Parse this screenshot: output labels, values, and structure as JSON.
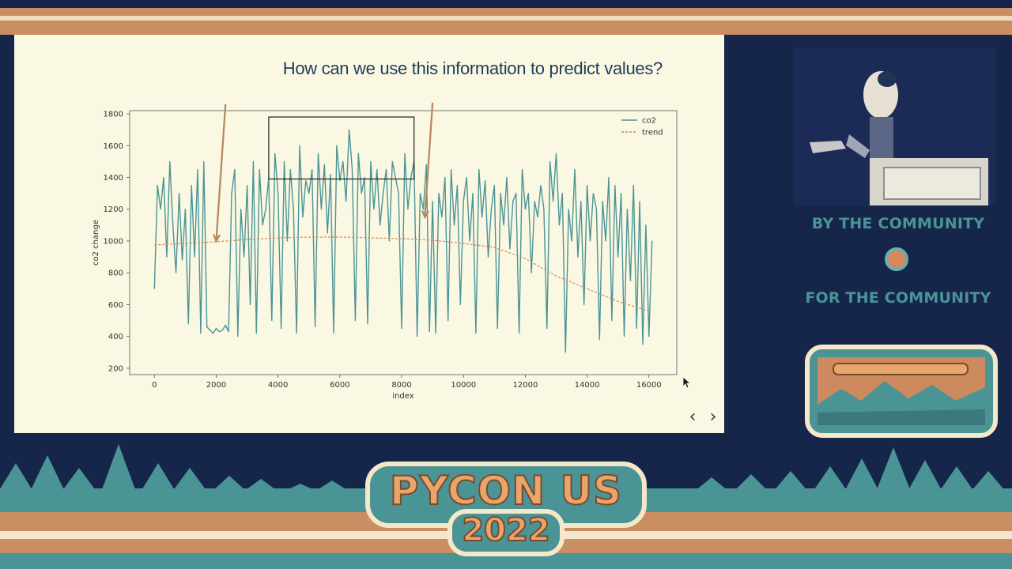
{
  "slide": {
    "title": "How can we use this information to predict values?",
    "prev_label": "‹",
    "next_label": "›"
  },
  "sidebar": {
    "tagline_top": "BY THE COMMUNITY",
    "tagline_bottom": "FOR THE COMMUNITY"
  },
  "event": {
    "name": "PYCON US",
    "year": "2022"
  },
  "icons": {
    "prev": "chevron-left-icon",
    "next": "chevron-right-icon",
    "cursor": "mouse-pointer-icon"
  },
  "colors": {
    "background": "#16254a",
    "slide_bg": "#faf8e2",
    "accent_tan": "#c98e62",
    "accent_teal": "#4b9496",
    "co2_line": "#4b9496",
    "trend_line": "#d9865a",
    "annotation": "#b5865a"
  },
  "chart_data": {
    "type": "line",
    "xlabel": "index",
    "ylabel": "co2 change",
    "xlim": [
      -800,
      16900
    ],
    "ylim": [
      160,
      1820
    ],
    "x_ticks": [
      0,
      2000,
      4000,
      6000,
      8000,
      10000,
      12000,
      14000,
      16000
    ],
    "y_ticks": [
      200,
      400,
      600,
      800,
      1000,
      1200,
      1400,
      1600,
      1800
    ],
    "legend_position": "top-right",
    "series": [
      {
        "name": "co2",
        "color": "#4b9496",
        "x": [
          0,
          100,
          200,
          300,
          400,
          500,
          600,
          700,
          800,
          900,
          1000,
          1100,
          1200,
          1300,
          1400,
          1500,
          1600,
          1700,
          1800,
          1900,
          2000,
          2100,
          2200,
          2300,
          2400,
          2500,
          2600,
          2700,
          2800,
          2900,
          3000,
          3100,
          3200,
          3300,
          3400,
          3500,
          3600,
          3700,
          3800,
          3900,
          4000,
          4100,
          4200,
          4300,
          4400,
          4500,
          4600,
          4700,
          4800,
          4900,
          5000,
          5100,
          5200,
          5300,
          5400,
          5500,
          5600,
          5700,
          5800,
          5900,
          6000,
          6100,
          6200,
          6300,
          6400,
          6500,
          6600,
          6700,
          6800,
          6900,
          7000,
          7100,
          7200,
          7300,
          7400,
          7500,
          7600,
          7700,
          7800,
          7900,
          8000,
          8100,
          8200,
          8300,
          8400,
          8500,
          8600,
          8700,
          8800,
          8900,
          9000,
          9100,
          9200,
          9300,
          9400,
          9500,
          9600,
          9700,
          9800,
          9900,
          10000,
          10100,
          10200,
          10300,
          10400,
          10500,
          10600,
          10700,
          10800,
          10900,
          11000,
          11100,
          11200,
          11300,
          11400,
          11500,
          11600,
          11700,
          11800,
          11900,
          12000,
          12100,
          12200,
          12300,
          12400,
          12500,
          12600,
          12700,
          12800,
          12900,
          13000,
          13100,
          13200,
          13300,
          13400,
          13500,
          13600,
          13700,
          13800,
          13900,
          14000,
          14100,
          14200,
          14300,
          14400,
          14500,
          14600,
          14700,
          14800,
          14900,
          15000,
          15100,
          15200,
          15300,
          15400,
          15500,
          15600,
          15700,
          15800,
          15900,
          16000,
          16100
        ],
        "y": [
          700,
          1350,
          1200,
          1400,
          900,
          1500,
          1100,
          800,
          1300,
          880,
          1200,
          480,
          1350,
          900,
          1450,
          420,
          1500,
          460,
          440,
          420,
          450,
          430,
          440,
          470,
          430,
          1300,
          1450,
          400,
          1200,
          900,
          1350,
          600,
          1500,
          420,
          1450,
          1100,
          1200,
          1400,
          500,
          1550,
          1300,
          450,
          1500,
          1000,
          1450,
          1200,
          420,
          1600,
          1150,
          1380,
          1300,
          1450,
          460,
          1550,
          1200,
          1480,
          1050,
          1420,
          420,
          1600,
          1380,
          1500,
          1250,
          1700,
          1450,
          500,
          1550,
          1300,
          1400,
          480,
          1500,
          1200,
          1450,
          1100,
          1300,
          1450,
          1000,
          1500,
          1400,
          1300,
          450,
          1550,
          1200,
          1400,
          1500,
          400,
          1300,
          1200,
          1480,
          430,
          1250,
          420,
          1300,
          1150,
          1400,
          500,
          1450,
          1100,
          1350,
          600,
          1250,
          1400,
          1000,
          1300,
          420,
          1450,
          1150,
          1380,
          900,
          1200,
          1350,
          450,
          1300,
          1100,
          1400,
          950,
          1250,
          1300,
          420,
          1450,
          1200,
          1300,
          800,
          1250,
          1150,
          1350,
          1200,
          450,
          1500,
          1250,
          1550,
          1100,
          1300,
          300,
          1200,
          1000,
          1450,
          900,
          1250,
          600,
          1350,
          1000,
          1300,
          1200,
          380,
          1250,
          1000,
          1400,
          500,
          1350,
          900,
          1300,
          400,
          1200,
          750,
          1350,
          450,
          1250,
          350,
          1100,
          400,
          1000
        ]
      },
      {
        "name": "trend",
        "color": "#d9865a",
        "x": [
          0,
          1000,
          2000,
          3000,
          4000,
          5000,
          6000,
          7000,
          8000,
          9000,
          10000,
          11000,
          12000,
          13000,
          14000,
          15000,
          16000
        ],
        "y": [
          975,
          985,
          995,
          1010,
          1020,
          1025,
          1025,
          1020,
          1015,
          1005,
          985,
          960,
          890,
          780,
          700,
          620,
          560
        ]
      }
    ],
    "annotations": [
      {
        "type": "arrow",
        "from": [
          2300,
          1860
        ],
        "to": [
          2000,
          1000
        ]
      },
      {
        "type": "arrow",
        "from": [
          9000,
          1870
        ],
        "to": [
          8750,
          1150
        ]
      },
      {
        "type": "box",
        "x0": 3700,
        "x1": 8400,
        "y0": 1390,
        "y1": 1780
      }
    ]
  }
}
